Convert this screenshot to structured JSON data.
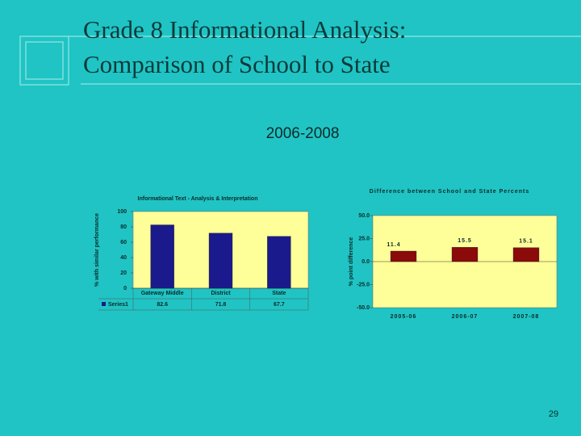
{
  "slide": {
    "title": [
      "Grade 8 Informational Analysis:",
      "Comparison of School to State"
    ],
    "subtitle": "2006-2008",
    "page_number": "29"
  },
  "chart_data": [
    {
      "type": "bar",
      "title": "Informational Text - Analysis & Interpretation",
      "y_label": "% with similar performance",
      "categories": [
        "Gateway Middle",
        "District",
        "State"
      ],
      "series": [
        {
          "name": "Series1",
          "color": "#1a1a8c",
          "values": [
            82.6,
            71.8,
            67.7
          ]
        }
      ],
      "ylim": [
        0,
        100
      ],
      "yticks": [
        0,
        20,
        40,
        60,
        80,
        100
      ],
      "data_table": true
    },
    {
      "type": "bar",
      "title": "Difference between School and State Percents",
      "y_label": "% point difference",
      "categories": [
        "2005-06",
        "2006-07",
        "2007-08"
      ],
      "series": [
        {
          "color": "#8b0a0a",
          "values": [
            11.4,
            15.5,
            15.1
          ]
        }
      ],
      "ylim": [
        -50,
        50
      ],
      "yticks": [
        {
          "value": -50,
          "label": "-50.0"
        },
        {
          "value": -25,
          "label": "-25.0"
        },
        {
          "value": 0,
          "label": "0.0"
        },
        {
          "value": 25,
          "label": "25.0"
        },
        {
          "value": 50,
          "label": "50.0"
        }
      ],
      "data_labels": true
    }
  ]
}
